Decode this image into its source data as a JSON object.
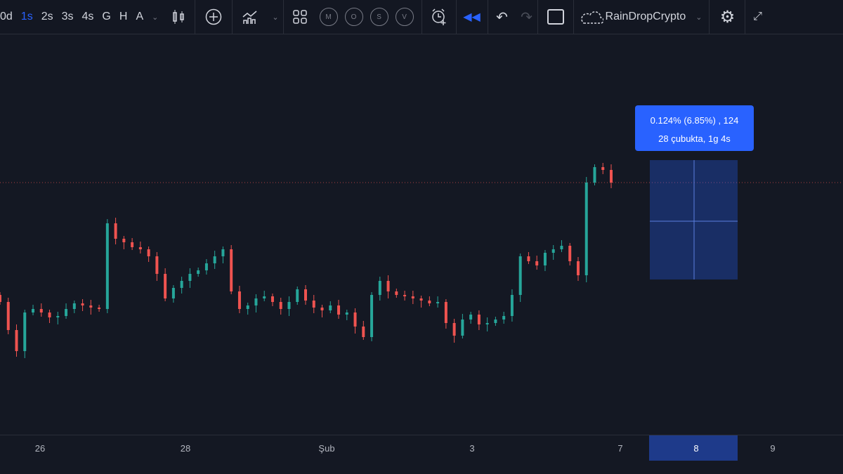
{
  "toolbar": {
    "intervals": [
      "0d",
      "1s",
      "2s",
      "3s",
      "4s",
      "G",
      "H",
      "A"
    ],
    "active_interval": "1s",
    "indicator_circles": [
      "M",
      "O",
      "S",
      "V"
    ],
    "layout_name": "RainDropCrypto",
    "colors": {
      "active": "#2962ff",
      "icon": "#d1d4dc"
    }
  },
  "tooltip": {
    "line1": "0.124% (6.85%) , 124",
    "line2": "28 çubukta, 1g 4s"
  },
  "x_axis": {
    "labels": [
      "26",
      "28",
      "Şub",
      "3",
      "7",
      "8",
      "9"
    ],
    "highlighted": "8"
  },
  "chart_data": {
    "type": "candlestick",
    "ylim": [
      -20,
      550
    ],
    "closes": [
      170,
      130,
      100,
      155,
      160,
      155,
      148,
      150,
      160,
      168,
      165,
      162,
      160,
      282,
      260,
      255,
      248,
      245,
      235,
      210,
      175,
      190,
      200,
      210,
      215,
      225,
      235,
      245,
      185,
      160,
      165,
      175,
      178,
      170,
      160,
      170,
      188,
      172,
      162,
      158,
      165,
      152,
      155,
      135,
      120,
      180,
      200,
      185,
      180,
      178,
      175,
      172,
      168,
      170,
      140,
      122,
      145,
      152,
      138,
      140,
      145,
      150,
      180,
      235,
      228,
      222,
      240,
      245,
      250,
      228,
      208,
      340,
      362,
      358,
      340
    ],
    "colors": {
      "up": "#26a69a",
      "down": "#ef5350"
    }
  }
}
